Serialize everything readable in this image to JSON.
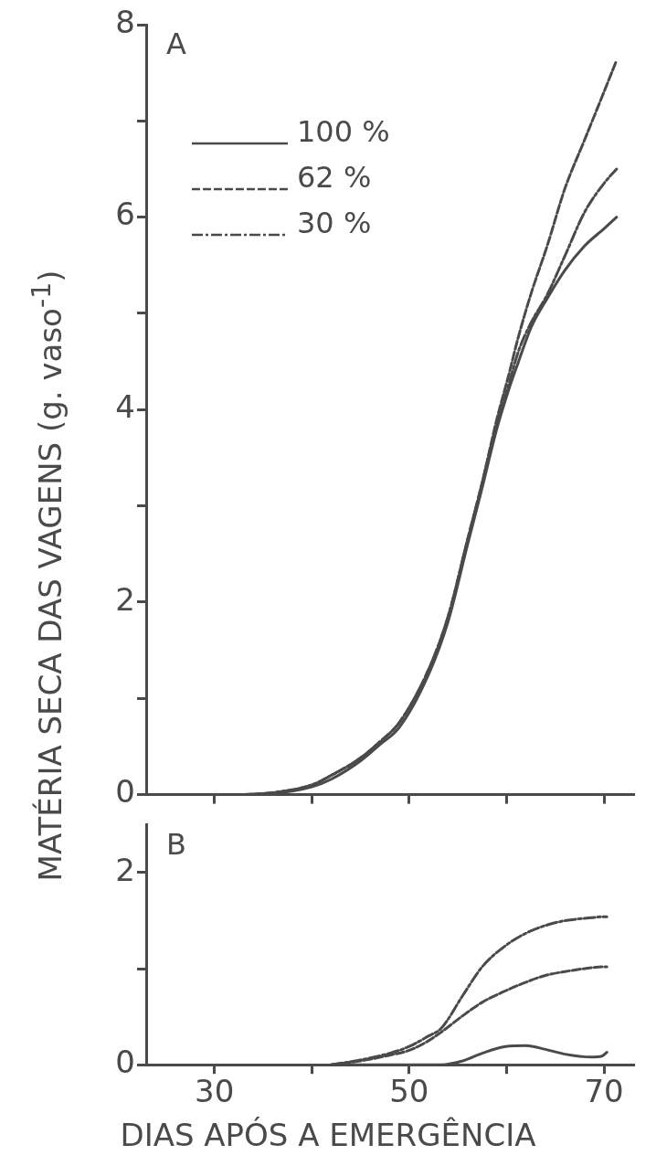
{
  "chart_data": [
    {
      "type": "line",
      "ylabel": "MATÉRIA SECA DAS VAGENS (g. vaso$^{-1}$)",
      "annotations": [
        "A"
      ],
      "legend": "top left",
      "tick_labels": "y",
      "grid": false,
      "xlim": [
        23,
        73
      ],
      "xticks": [
        30,
        40,
        50,
        60,
        70
      ],
      "ylim": [
        0,
        8
      ],
      "yticks": [
        0,
        {
          "value": 1,
          "label": null
        },
        2,
        {
          "value": 3,
          "label": null
        },
        4,
        {
          "value": 5,
          "label": null
        },
        6,
        {
          "value": 7,
          "label": null
        },
        8
      ],
      "x": [
        33,
        36,
        40,
        42,
        45,
        47,
        49,
        52,
        54,
        56,
        57.4,
        59,
        60.2,
        61.2,
        62.5,
        64.2,
        66,
        68,
        70,
        71.3
      ],
      "series": [
        {
          "name": "100 %",
          "color": "#4a4a4a",
          "line_style": "solid",
          "values": [
            0,
            0.01,
            0.08,
            0.16,
            0.35,
            0.52,
            0.7,
            1.25,
            1.8,
            2.6,
            3.15,
            3.8,
            4.2,
            4.49,
            4.85,
            5.16,
            5.45,
            5.7,
            5.88,
            6.0
          ]
        },
        {
          "name": "62 %",
          "color": "#4a4a4a",
          "line_style": "dashed",
          "values": [
            0,
            0.02,
            0.1,
            0.2,
            0.38,
            0.55,
            0.75,
            1.3,
            1.85,
            2.65,
            3.2,
            3.9,
            4.35,
            4.75,
            5.2,
            5.71,
            6.3,
            6.8,
            7.3,
            7.63
          ]
        },
        {
          "name": "30 %",
          "color": "#4a4a4a",
          "line_style": "dashdot",
          "values": [
            0,
            0.02,
            0.1,
            0.2,
            0.38,
            0.55,
            0.75,
            1.3,
            1.85,
            2.65,
            3.2,
            3.85,
            4.25,
            4.6,
            4.9,
            5.2,
            5.6,
            6.05,
            6.35,
            6.5
          ]
        }
      ]
    },
    {
      "type": "line",
      "xlabel": "DIAS APÓS A EMERGÊNCIA",
      "annotations": [
        "B"
      ],
      "grid": false,
      "xlim": [
        23,
        73
      ],
      "xticks": [
        30,
        {
          "value": 40,
          "label": null
        },
        50,
        {
          "value": 60,
          "label": null
        },
        70
      ],
      "ylim": [
        0,
        2.5
      ],
      "yticks": [
        0,
        {
          "value": 1,
          "label": null
        },
        2
      ],
      "x": [
        42,
        45,
        48,
        50,
        52,
        53.3,
        55.5,
        57.5,
        59.9,
        62,
        64,
        66,
        68.7,
        69.8,
        70.3
      ],
      "series": [
        {
          "color": "#4a4a4a",
          "line_style": "solid",
          "values": [
            0,
            0,
            0,
            0,
            0,
            0,
            0.04,
            0.12,
            0.19,
            0.2,
            0.16,
            0.11,
            0.08,
            0.09,
            0.13
          ]
        },
        {
          "color": "#4a4a4a",
          "line_style": "dashed",
          "values": [
            0,
            0.04,
            0.1,
            0.15,
            0.25,
            0.34,
            0.51,
            0.65,
            0.77,
            0.86,
            0.93,
            0.97,
            1.01,
            1.02,
            1.02
          ]
        },
        {
          "color": "#4a4a4a",
          "line_style": "dashdot",
          "values": [
            0,
            0.05,
            0.12,
            0.19,
            0.3,
            0.38,
            0.72,
            1.02,
            1.24,
            1.37,
            1.45,
            1.5,
            1.53,
            1.54,
            1.54
          ]
        }
      ]
    }
  ]
}
